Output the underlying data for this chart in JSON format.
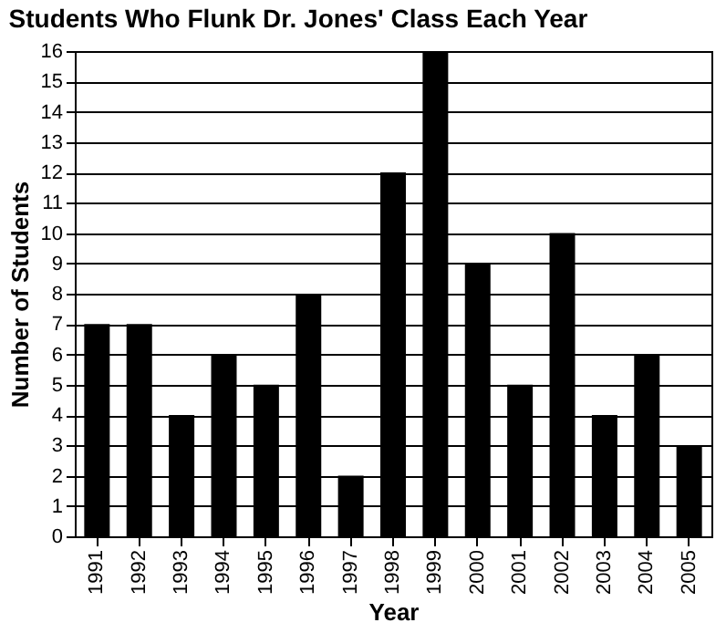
{
  "chart_data": {
    "type": "bar",
    "title": "Students Who Flunk Dr. Jones' Class Each Year",
    "xlabel": "Year",
    "ylabel": "Number of Students",
    "categories": [
      "1991",
      "1992",
      "1993",
      "1994",
      "1995",
      "1996",
      "1997",
      "1998",
      "1999",
      "2000",
      "2001",
      "2002",
      "2003",
      "2004",
      "2005"
    ],
    "values": [
      7,
      7,
      4,
      6,
      5,
      8,
      2,
      12,
      16,
      9,
      5,
      10,
      4,
      6,
      3
    ],
    "color": "#000000",
    "ylim": [
      0,
      16
    ],
    "yticks": [
      0,
      1,
      2,
      3,
      4,
      5,
      6,
      7,
      8,
      9,
      10,
      11,
      12,
      13,
      14,
      15,
      16
    ],
    "grid": "y"
  }
}
